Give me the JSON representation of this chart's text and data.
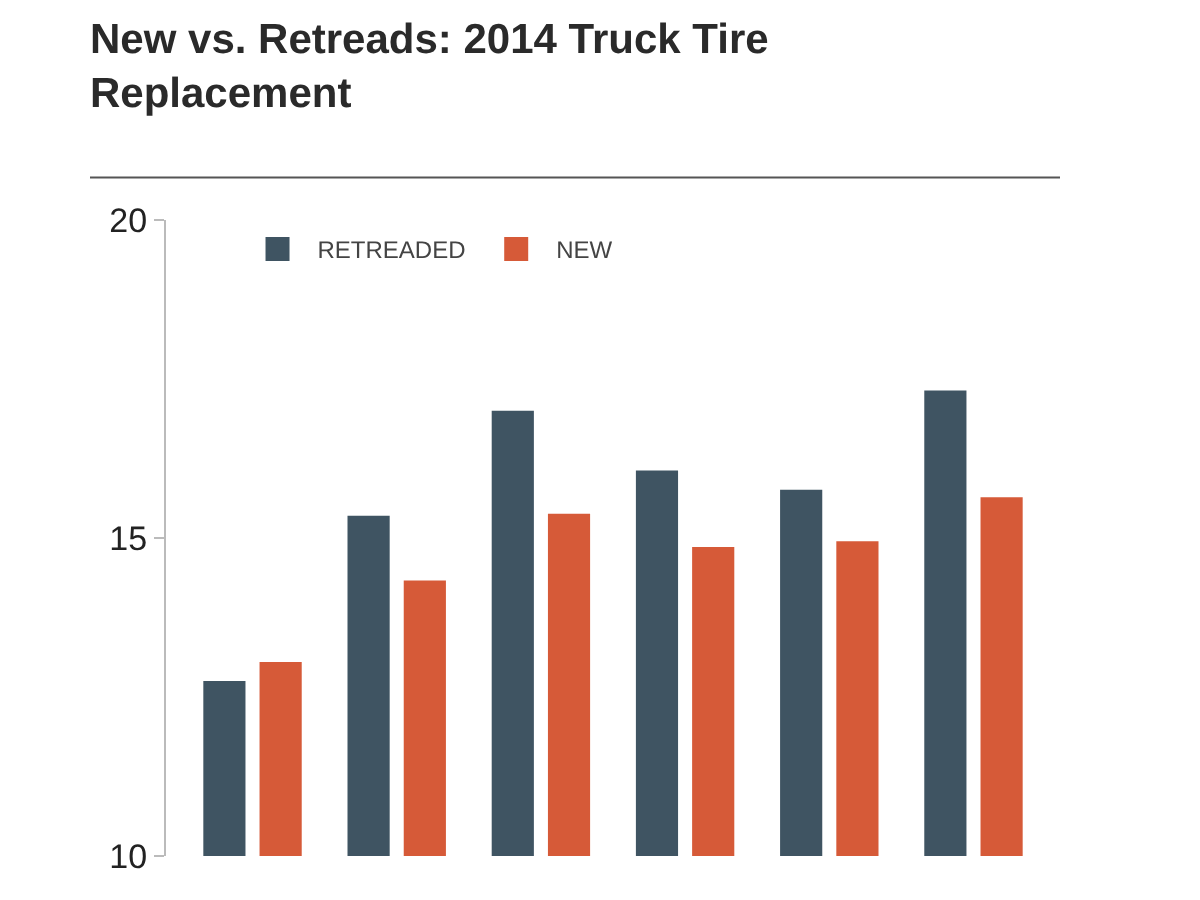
{
  "chart_data": {
    "type": "bar",
    "title": "New vs. Retreads: 2014 Truck Tire Replacement",
    "categories": [
      null,
      null,
      null,
      null,
      null,
      null
    ],
    "series": [
      {
        "name": "RETREADED",
        "color": "#3f5462",
        "values": [
          12.75,
          15.35,
          17.0,
          16.06,
          15.76,
          17.32
        ]
      },
      {
        "name": "NEW",
        "color": "#d65a38",
        "values": [
          13.05,
          14.33,
          15.38,
          14.86,
          14.95,
          15.64
        ]
      }
    ],
    "ylim": [
      10,
      20
    ],
    "yticks": [
      20,
      15,
      10
    ],
    "legend": "top left"
  }
}
